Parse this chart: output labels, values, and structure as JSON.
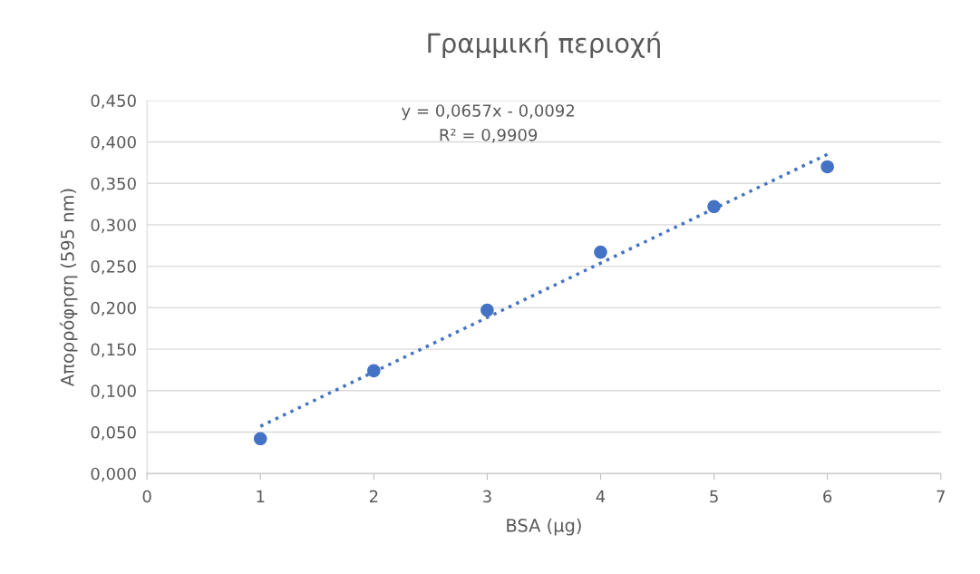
{
  "chart_data": {
    "type": "scatter",
    "title": "Γραμμική περιοχή",
    "xlabel": "BSA (μg)",
    "ylabel": "Απορρόφηση (595 nm)",
    "annotations": [
      "y = 0,0657x - 0,0092",
      "R² = 0,9909"
    ],
    "x": [
      1,
      2,
      3,
      4,
      5,
      6
    ],
    "series": [
      {
        "color": "#4472c4",
        "marker": "circle",
        "values": [
          0.042,
          0.124,
          0.197,
          0.267,
          0.322,
          0.37
        ]
      },
      {
        "type": "line",
        "color": "#4472c4",
        "marker": "none",
        "line_style": "dotted",
        "x": [
          1,
          6
        ],
        "values": [
          0.057,
          0.385
        ]
      }
    ],
    "xlim": [
      0,
      7
    ],
    "xticks": [
      0,
      1,
      2,
      3,
      4,
      5,
      6,
      7
    ],
    "ylim": [
      0,
      0.45
    ],
    "yticks": [
      {
        "value": 0,
        "label": "0,000"
      },
      {
        "value": 0.05,
        "label": "0,050"
      },
      {
        "value": 0.1,
        "label": "0,100"
      },
      {
        "value": 0.15,
        "label": "0,150"
      },
      {
        "value": 0.2,
        "label": "0,200"
      },
      {
        "value": 0.25,
        "label": "0,250"
      },
      {
        "value": 0.3,
        "label": "0,300"
      },
      {
        "value": 0.35,
        "label": "0,350"
      },
      {
        "value": 0.4,
        "label": "0,400"
      },
      {
        "value": 0.45,
        "label": "0,450"
      }
    ],
    "grid": "y",
    "legend": false
  }
}
